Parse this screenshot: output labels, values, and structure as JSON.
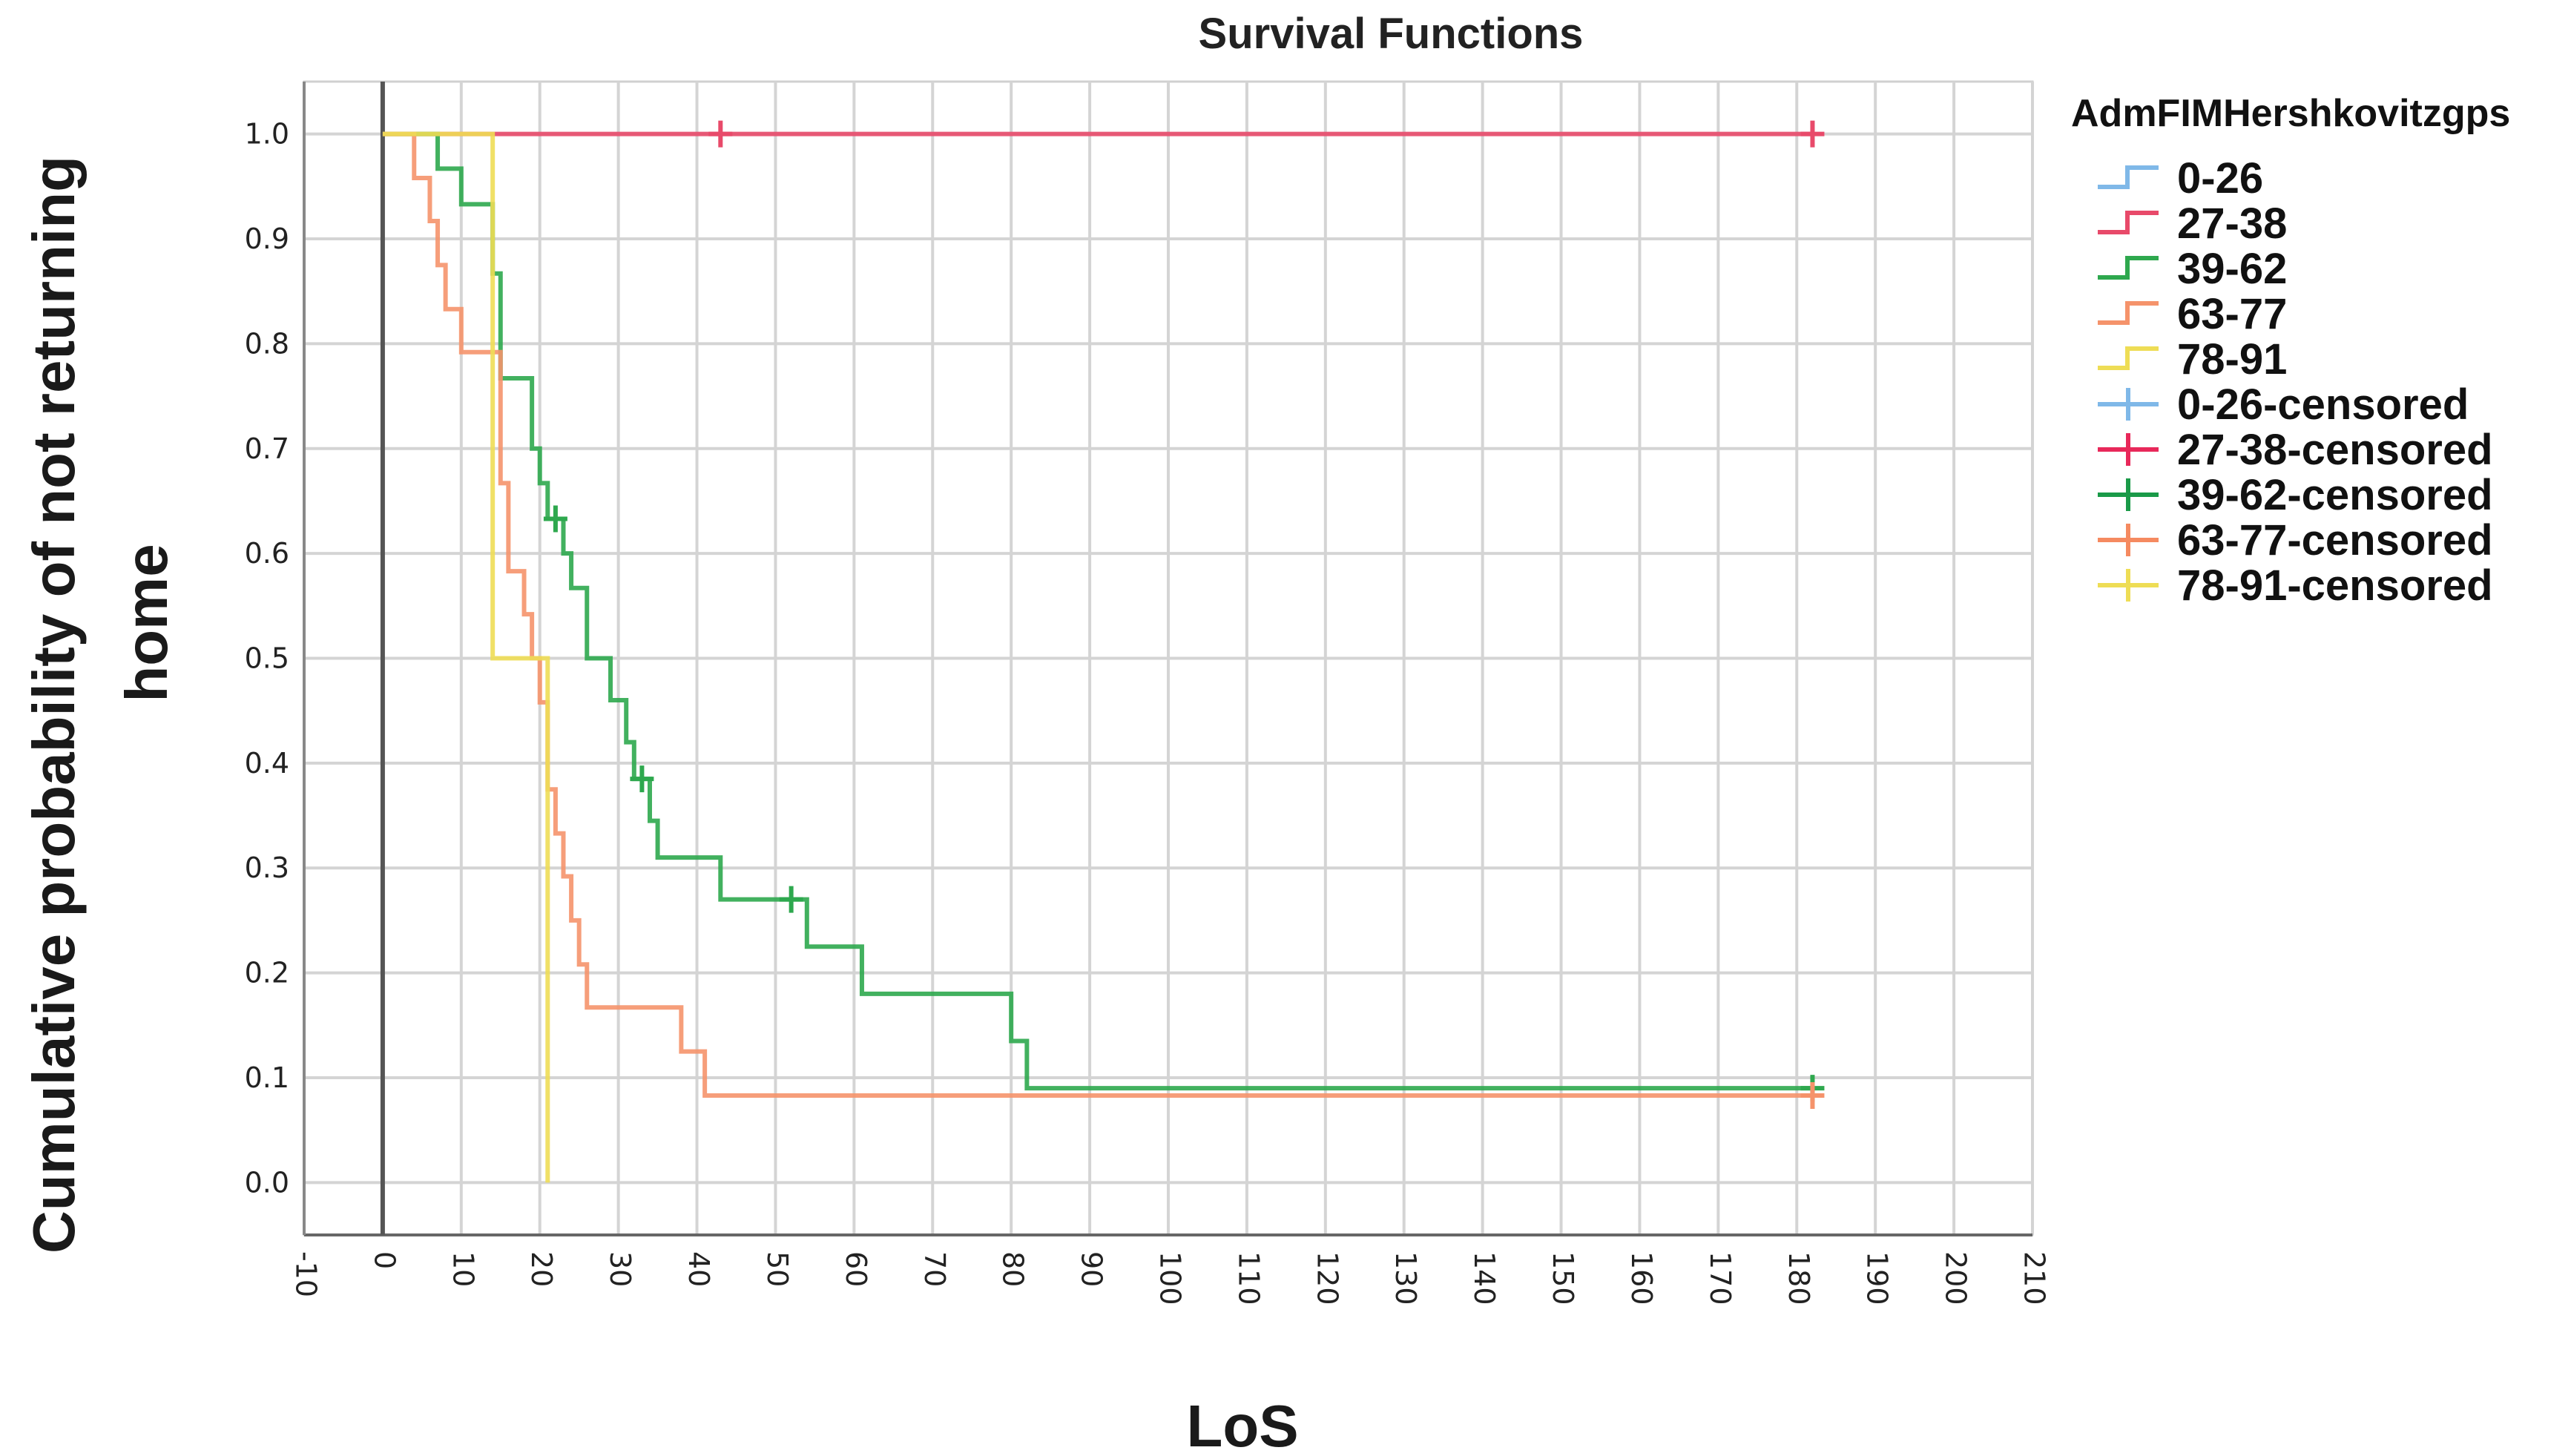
{
  "chart_data": {
    "type": "line",
    "subtype": "kaplan-meier-step",
    "title": "Survival Functions",
    "xlabel": "LoS",
    "ylabel_line1": "Cumulative probability of not returning",
    "ylabel_line2": "home",
    "xlim": [
      -10,
      210
    ],
    "ylim": [
      -0.05,
      1.05
    ],
    "x_ticks": [
      -10,
      0,
      10,
      20,
      30,
      40,
      50,
      60,
      70,
      80,
      90,
      100,
      110,
      120,
      130,
      140,
      150,
      160,
      170,
      180,
      190,
      200,
      210
    ],
    "y_ticks": [
      "0.0",
      "0.1",
      "0.2",
      "0.3",
      "0.4",
      "0.5",
      "0.6",
      "0.7",
      "0.8",
      "0.9",
      "1.0"
    ],
    "grid": true,
    "legend_position": "right",
    "legend_title": "AdmFIMHershkovitzgps",
    "legend": [
      {
        "label": "0-26",
        "kind": "step",
        "color": "#7fb8e8"
      },
      {
        "label": "27-38",
        "kind": "step",
        "color": "#e84a6a"
      },
      {
        "label": "39-62",
        "kind": "step",
        "color": "#2ea84e"
      },
      {
        "label": "63-77",
        "kind": "step",
        "color": "#f5936b"
      },
      {
        "label": "78-91",
        "kind": "step",
        "color": "#eedd55"
      },
      {
        "label": "0-26-censored",
        "kind": "censor",
        "color": "#7fb8e8"
      },
      {
        "label": "27-38-censored",
        "kind": "censor",
        "color": "#e8285a"
      },
      {
        "label": "39-62-censored",
        "kind": "censor",
        "color": "#1a9a48"
      },
      {
        "label": "63-77-censored",
        "kind": "censor",
        "color": "#f58a60"
      },
      {
        "label": "78-91-censored",
        "kind": "censor",
        "color": "#eedd55"
      }
    ],
    "series": [
      {
        "name": "27-38",
        "color": "#e84a6a",
        "x": [
          0,
          182
        ],
        "y": [
          1.0,
          1.0
        ],
        "censored": [
          {
            "x": 43,
            "y": 1.0
          },
          {
            "x": 182,
            "y": 1.0
          }
        ]
      },
      {
        "name": "39-62",
        "color": "#2ea84e",
        "x": [
          0,
          7,
          10,
          14,
          15,
          19,
          20,
          21,
          23,
          24,
          26,
          29,
          31,
          32,
          34,
          35,
          43,
          54,
          61,
          80,
          82,
          182
        ],
        "y": [
          1.0,
          0.967,
          0.933,
          0.867,
          0.767,
          0.7,
          0.667,
          0.633,
          0.6,
          0.567,
          0.5,
          0.46,
          0.42,
          0.385,
          0.345,
          0.31,
          0.27,
          0.225,
          0.18,
          0.135,
          0.09,
          0.09
        ],
        "censored": [
          {
            "x": 22,
            "y": 0.633
          },
          {
            "x": 33,
            "y": 0.385
          },
          {
            "x": 52,
            "y": 0.27
          },
          {
            "x": 182,
            "y": 0.09
          }
        ]
      },
      {
        "name": "63-77",
        "color": "#f5936b",
        "x": [
          0,
          4,
          6,
          7,
          8,
          10,
          11,
          15,
          16,
          18,
          19,
          20,
          21,
          22,
          23,
          24,
          25,
          26,
          38,
          41,
          182
        ],
        "y": [
          1.0,
          0.958,
          0.917,
          0.875,
          0.833,
          0.792,
          0.792,
          0.667,
          0.583,
          0.542,
          0.5,
          0.458,
          0.375,
          0.333,
          0.292,
          0.25,
          0.208,
          0.167,
          0.125,
          0.083,
          0.083
        ],
        "censored": [
          {
            "x": 182,
            "y": 0.083
          }
        ]
      },
      {
        "name": "78-91",
        "color": "#eedd55",
        "x": [
          0,
          14,
          21,
          21
        ],
        "y": [
          1.0,
          0.5,
          0.5,
          0.0
        ],
        "censored": []
      }
    ]
  }
}
